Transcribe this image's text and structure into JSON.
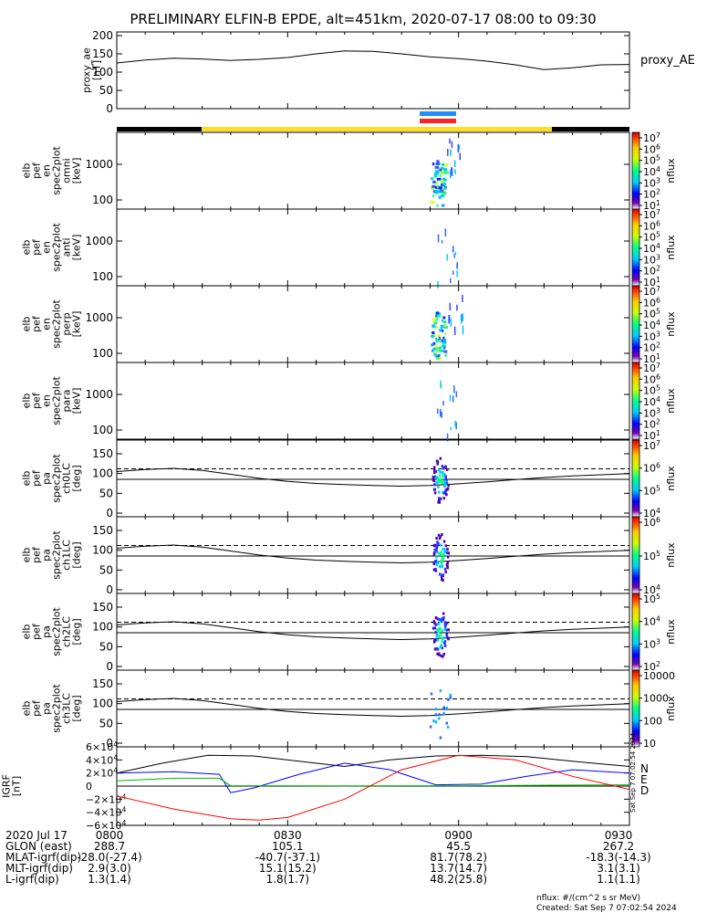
{
  "title": "PRELIMINARY ELFIN-B EPDE, alt=451km, 2020-07-17 08:00 to 09:30",
  "proxy_ae": {
    "ylabel": [
      "proxy_ae",
      "[nT]"
    ],
    "legend": "proxy_AE",
    "yticks": [
      "200",
      "150",
      "100",
      "50",
      "0"
    ]
  },
  "spec_panels": [
    {
      "ylabel": [
        "elb",
        "pef",
        "en",
        "spec2plot",
        "omni",
        "[keV]"
      ],
      "yticks": [
        "1000",
        "100"
      ]
    },
    {
      "ylabel": [
        "elb",
        "pef",
        "en",
        "spec2plot",
        "anti",
        "[keV]"
      ],
      "yticks": [
        "1000",
        "100"
      ]
    },
    {
      "ylabel": [
        "elb",
        "pef",
        "en",
        "spec2plot",
        "perp",
        "[keV]"
      ],
      "yticks": [
        "1000",
        "100"
      ]
    },
    {
      "ylabel": [
        "elb",
        "pef",
        "en",
        "spec2plot",
        "para",
        "[keV]"
      ],
      "yticks": [
        "1000",
        "100"
      ]
    }
  ],
  "pa_panels": [
    {
      "ylabel": [
        "elb",
        "pef",
        "pa",
        "spec2plot",
        "ch0LC",
        "[deg]"
      ],
      "yticks": [
        "150",
        "100",
        "50",
        "0"
      ]
    },
    {
      "ylabel": [
        "elb",
        "pef",
        "pa",
        "spec2plot",
        "ch1LC",
        "[deg]"
      ],
      "yticks": [
        "150",
        "100",
        "50",
        "0"
      ]
    },
    {
      "ylabel": [
        "elb",
        "pef",
        "pa",
        "spec2plot",
        "ch2LC",
        "[deg]"
      ],
      "yticks": [
        "150",
        "100",
        "50",
        "0"
      ]
    },
    {
      "ylabel": [
        "elb",
        "pef",
        "pa",
        "spec2plot",
        "ch3LC",
        "[deg]"
      ],
      "yticks": [
        "150",
        "100",
        "50",
        "0"
      ]
    }
  ],
  "colorbars": [
    {
      "labels": [
        "10^7",
        "10^6",
        "10^5",
        "10^4",
        "10^3",
        "10^2",
        "10^1"
      ],
      "unit": "nflux"
    },
    {
      "labels": [
        "10^7",
        "10^6",
        "10^5",
        "10^4",
        "10^3",
        "10^2",
        "10^1"
      ],
      "unit": "nflux"
    },
    {
      "labels": [
        "10^7",
        "10^6",
        "10^5",
        "10^4",
        "10^3",
        "10^2",
        "10^1"
      ],
      "unit": "nflux"
    },
    {
      "labels": [
        "10^7",
        "10^6",
        "10^5",
        "10^4",
        "10^3",
        "10^2",
        "10^1"
      ],
      "unit": "nflux"
    },
    {
      "labels": [
        "10^7",
        "10^6",
        "10^5",
        "10^4"
      ],
      "unit": "nflux"
    },
    {
      "labels": [
        "10^6",
        "10^5",
        "10^4"
      ],
      "unit": "nflux"
    },
    {
      "labels": [
        "10^5",
        "10^4",
        "10^3",
        "10^2"
      ],
      "unit": "nflux"
    },
    {
      "labels": [
        "10000",
        "1000",
        "100",
        "10"
      ],
      "unit": "nflux"
    }
  ],
  "igrf": {
    "ylabel": [
      "IGRF",
      "[nT]"
    ],
    "yticks": [
      "6×10^4",
      "4×10^4",
      "2×10^4",
      "0",
      "−2×10^4",
      "−4×10^4",
      "−6×10^4"
    ],
    "legend": [
      {
        "label": "N",
        "color": "#0000ff"
      },
      {
        "label": "E",
        "color": "#00bb00"
      },
      {
        "label": "D",
        "color": "#ff0000"
      }
    ],
    "stamp": "Sat Sep 7 07:02:54 2024"
  },
  "x_axis": {
    "row_labels": [
      "2020 Jul 17",
      "GLON (east)",
      "MLAT-igrf(dip)",
      "MLT-igrf(dip)",
      "L-igrf(dip)"
    ],
    "columns": [
      {
        "rows": [
          "0800",
          "288.7",
          "-28.0(-27.4)",
          "2.9(3.0)",
          "1.3(1.4)"
        ]
      },
      {
        "rows": [
          "0830",
          "105.1",
          "-40.7(-37.1)",
          "15.1(15.2)",
          "1.8(1.7)"
        ]
      },
      {
        "rows": [
          "0900",
          "45.5",
          "81.7(78.2)",
          "13.7(14.7)",
          "48.2(25.8)"
        ]
      },
      {
        "rows": [
          "0930",
          "267.2",
          "-18.3(-14.3)",
          "3.1(3.1)",
          "1.1(1.1)"
        ]
      }
    ]
  },
  "footer": {
    "units": "nflux: #/(cm^2 s sr MeV)",
    "created": "Created: Sat Sep  7 07:02:54 2024"
  },
  "colors": {
    "sunlight": "#ffdd22",
    "shadow": "#000000",
    "sci_zone_blue": "#1e8fff",
    "sci_zone_red": "#ff2222",
    "n_comp": "#0000ff",
    "e_comp": "#00bb00",
    "d_comp": "#ff0000"
  },
  "chart_data": {
    "type": "line",
    "x_range": [
      "08:00",
      "09:30"
    ],
    "proxy_ae": {
      "name": "proxy_AE",
      "times_min": [
        0,
        5,
        10,
        15,
        20,
        25,
        30,
        35,
        40,
        45,
        50,
        55,
        60,
        65,
        70,
        75,
        80,
        85,
        90
      ],
      "values": [
        125,
        133,
        138,
        136,
        132,
        135,
        140,
        150,
        158,
        157,
        150,
        142,
        137,
        130,
        120,
        107,
        112,
        120,
        121
      ],
      "ylim": [
        0,
        210
      ]
    },
    "lc_line_deg": 112,
    "alc_line_deg": 68,
    "pa_footprint_curve": {
      "times_min": [
        0,
        5,
        10,
        15,
        20,
        25,
        30,
        35,
        40,
        45,
        50,
        55,
        60,
        65,
        70,
        75,
        80,
        85,
        90
      ],
      "values": [
        105,
        110,
        113,
        108,
        98,
        88,
        80,
        75,
        72,
        70,
        68,
        70,
        74,
        79,
        85,
        90,
        94,
        97,
        100
      ]
    },
    "igrf": {
      "ylim": [
        -60000,
        60000
      ],
      "total": {
        "times_min": [
          0,
          8,
          16,
          24,
          32,
          40,
          48,
          56,
          64,
          72,
          80,
          90
        ],
        "values": [
          20000,
          35000,
          47000,
          46000,
          38000,
          30000,
          40000,
          46000,
          47000,
          45000,
          38000,
          30000
        ]
      },
      "N": {
        "times_min": [
          0,
          10,
          18,
          20,
          24,
          32,
          40,
          48,
          56,
          64,
          72,
          80,
          90
        ],
        "values": [
          20000,
          22000,
          18000,
          -10000,
          -3000,
          18000,
          35000,
          25000,
          2000,
          3000,
          15000,
          25000,
          20000
        ]
      },
      "E": {
        "times_min": [
          0,
          10,
          18,
          20,
          30,
          40,
          50,
          60,
          70,
          80,
          90
        ],
        "values": [
          8000,
          12000,
          12000,
          500,
          600,
          400,
          600,
          500,
          1000,
          1500,
          2000
        ]
      },
      "D": {
        "times_min": [
          0,
          10,
          20,
          25,
          30,
          40,
          50,
          60,
          70,
          80,
          90
        ],
        "values": [
          -15000,
          -35000,
          -50000,
          -52000,
          -48000,
          -20000,
          25000,
          47000,
          40000,
          15000,
          -5000
        ]
      }
    },
    "bursts": {
      "center_min": 57,
      "pa_center_deg": 85
    }
  }
}
